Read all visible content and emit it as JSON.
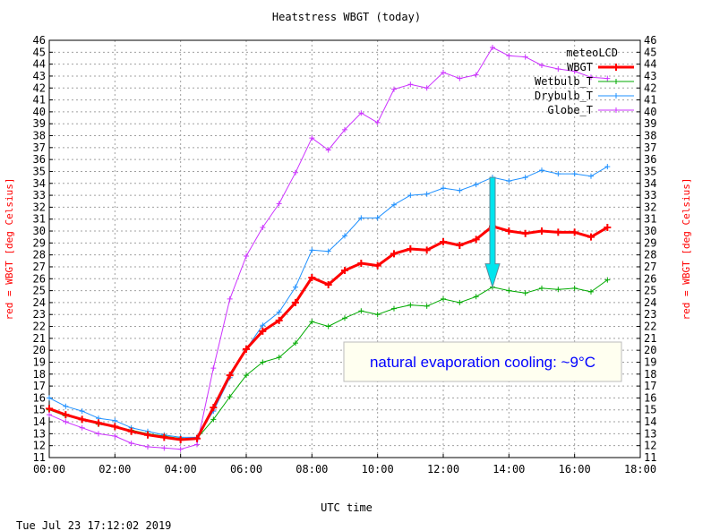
{
  "chart_data": {
    "type": "line",
    "title": "Heatstress WBGT (today)",
    "xlabel": "UTC time",
    "ylabel_left": "red = WBGT [deg Celsius]",
    "ylabel_right": "red = WBGT [deg Celsius]",
    "timestamp": "Tue Jul 23 17:12:02 2019",
    "xlim_hours": [
      0,
      18
    ],
    "ylim": [
      11,
      46
    ],
    "x_ticks": [
      "00:00",
      "02:00",
      "04:00",
      "06:00",
      "08:00",
      "10:00",
      "12:00",
      "14:00",
      "16:00",
      "18:00"
    ],
    "grid": true,
    "legend_title": "meteoLCD",
    "legend_position": "top-right",
    "x_hours": [
      0,
      0.5,
      1,
      1.5,
      2,
      2.5,
      3,
      3.5,
      4,
      4.5,
      5,
      5.5,
      6,
      6.5,
      7,
      7.5,
      8,
      8.5,
      9,
      9.5,
      10,
      10.5,
      11,
      11.5,
      12,
      12.5,
      13,
      13.5,
      14,
      14.5,
      15,
      15.5,
      16,
      16.5,
      17
    ],
    "series": [
      {
        "name": "WBGT",
        "color": "#ff0000",
        "values": [
          15.1,
          14.6,
          14.2,
          13.9,
          13.6,
          13.2,
          12.9,
          12.7,
          12.5,
          12.6,
          15.2,
          17.9,
          20.1,
          21.6,
          22.5,
          24.0,
          26.1,
          25.5,
          26.7,
          27.3,
          27.1,
          28.1,
          28.5,
          28.4,
          29.1,
          28.8,
          29.3,
          30.4,
          30.0,
          29.8,
          30.0,
          29.9,
          29.9,
          29.5,
          30.3
        ]
      },
      {
        "name": "Wetbulb_T",
        "color": "#00aa00",
        "values": [
          15.0,
          14.5,
          14.2,
          13.8,
          13.6,
          13.3,
          13.0,
          12.8,
          12.6,
          12.6,
          14.2,
          16.1,
          17.9,
          19.0,
          19.4,
          20.6,
          22.4,
          22.0,
          22.7,
          23.3,
          23.0,
          23.5,
          23.8,
          23.7,
          24.3,
          24.0,
          24.5,
          25.3,
          25.0,
          24.8,
          25.2,
          25.1,
          25.2,
          24.9,
          25.9
        ]
      },
      {
        "name": "Drybulb_T",
        "color": "#1e90ff",
        "values": [
          16.0,
          15.3,
          14.9,
          14.3,
          14.1,
          13.5,
          13.2,
          12.9,
          12.7,
          12.7,
          14.9,
          17.7,
          20.1,
          22.1,
          23.2,
          25.3,
          28.4,
          28.3,
          29.6,
          31.1,
          31.1,
          32.2,
          33.0,
          33.1,
          33.6,
          33.4,
          33.9,
          34.5,
          34.2,
          34.5,
          35.1,
          34.8,
          34.8,
          34.6,
          35.4
        ]
      },
      {
        "name": "Globe_T",
        "color": "#cc33ff",
        "values": [
          14.6,
          14.0,
          13.5,
          13.0,
          12.8,
          12.2,
          11.9,
          11.8,
          11.7,
          12.1,
          18.5,
          24.3,
          27.9,
          30.3,
          32.3,
          34.9,
          37.8,
          36.8,
          38.5,
          39.9,
          39.1,
          41.9,
          42.3,
          42.0,
          43.3,
          42.8,
          43.1,
          45.4,
          44.7,
          44.6,
          43.9,
          43.6,
          43.4,
          42.9,
          42.8
        ]
      }
    ],
    "annotation": {
      "text": "natural evaporation cooling: ~9°C",
      "arrow_x_hours": 13.5,
      "arrow_from": 34.5,
      "arrow_to": 25.3,
      "box_color": "#fffff0",
      "text_color": "#0000ff",
      "arrow_color": "#00e5ee"
    }
  }
}
